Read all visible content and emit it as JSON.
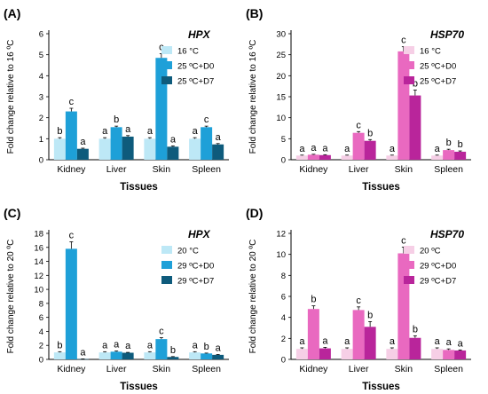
{
  "chart_data": [
    {
      "type": "bar",
      "panel": "(A)",
      "title": "HPX",
      "xlabel": "Tissues",
      "ylabel": "Fold change relative to 16 ºC",
      "ylim": [
        0,
        6
      ],
      "yticks": [
        "0",
        "1",
        "2",
        "3",
        "4",
        "5",
        "6"
      ],
      "categories": [
        "Kidney",
        "Liver",
        "Skin",
        "Spleen"
      ],
      "legend_position": "top-right",
      "series": [
        {
          "name": "16 °C",
          "color": "#bde8f6",
          "values": [
            1.0,
            1.0,
            1.0,
            1.0
          ],
          "errors": [
            0.05,
            0.05,
            0.05,
            0.05
          ],
          "labels": [
            "b",
            "a",
            "a",
            "a"
          ]
        },
        {
          "name": "25 ºC+D0",
          "color": "#1ea0d8",
          "values": [
            2.3,
            1.55,
            4.85,
            1.55
          ],
          "errors": [
            0.15,
            0.05,
            0.2,
            0.05
          ],
          "labels": [
            "c",
            "b",
            "c",
            "c"
          ]
        },
        {
          "name": "25 ºC+D7",
          "color": "#0e5b7c",
          "values": [
            0.52,
            1.1,
            0.62,
            0.73
          ],
          "errors": [
            0.03,
            0.05,
            0.04,
            0.04
          ],
          "labels": [
            "a",
            "a",
            "a",
            "a"
          ]
        }
      ]
    },
    {
      "type": "bar",
      "panel": "(B)",
      "title": "HSP70",
      "xlabel": "Tissues",
      "ylabel": "Fold change relative to 16 ºC",
      "ylim": [
        0,
        30
      ],
      "yticks": [
        "0",
        "5",
        "10",
        "15",
        "20",
        "25",
        "30"
      ],
      "categories": [
        "Kidney",
        "Liver",
        "Skin",
        "Spleen"
      ],
      "legend_position": "top-right",
      "series": [
        {
          "name": "16 °C",
          "color": "#f6cfe6",
          "values": [
            1.0,
            1.0,
            1.0,
            1.0
          ],
          "errors": [
            0.1,
            0.1,
            0.1,
            0.1
          ],
          "labels": [
            "a",
            "a",
            "a",
            "a"
          ]
        },
        {
          "name": "25 ºC+D0",
          "color": "#e969c0",
          "values": [
            1.2,
            6.4,
            25.8,
            2.3
          ],
          "errors": [
            0.1,
            0.3,
            1.1,
            0.2
          ],
          "labels": [
            "a",
            "c",
            "c",
            "b"
          ]
        },
        {
          "name": "25 ºC+D7",
          "color": "#b9259b",
          "values": [
            1.1,
            4.5,
            15.3,
            1.9
          ],
          "errors": [
            0.1,
            0.3,
            1.3,
            0.2
          ],
          "labels": [
            "a",
            "b",
            "b",
            "b"
          ]
        }
      ]
    },
    {
      "type": "bar",
      "panel": "(C)",
      "title": "HPX",
      "xlabel": "Tissues",
      "ylabel": "Fold change relative to 20 ºC",
      "ylim": [
        0,
        18
      ],
      "yticks": [
        "0",
        "2",
        "4",
        "6",
        "8",
        "10",
        "12",
        "14",
        "16",
        "18"
      ],
      "categories": [
        "Kidney",
        "Liver",
        "Skin",
        "Spleen"
      ],
      "legend_position": "top-right",
      "series": [
        {
          "name": "20 °C",
          "color": "#bde8f6",
          "values": [
            1.0,
            1.0,
            1.0,
            1.0
          ],
          "errors": [
            0.1,
            0.1,
            0.1,
            0.1
          ],
          "labels": [
            "b",
            "a",
            "a",
            "a"
          ]
        },
        {
          "name": "29 ºC+D0",
          "color": "#1ea0d8",
          "values": [
            15.8,
            1.1,
            2.9,
            0.85
          ],
          "errors": [
            1.0,
            0.1,
            0.2,
            0.05
          ],
          "labels": [
            "c",
            "a",
            "c",
            "b"
          ]
        },
        {
          "name": "29 ºC+D7",
          "color": "#0e5b7c",
          "values": [
            0.05,
            0.95,
            0.35,
            0.65
          ],
          "errors": [
            0.02,
            0.05,
            0.05,
            0.05
          ],
          "labels": [
            "a",
            "a",
            "b",
            "a"
          ]
        }
      ]
    },
    {
      "type": "bar",
      "panel": "(D)",
      "title": "HSP70",
      "xlabel": "Tissues",
      "ylabel": "Fold change relative to 20 ºC",
      "ylim": [
        0,
        12
      ],
      "yticks": [
        "0",
        "2",
        "4",
        "6",
        "8",
        "10",
        "12"
      ],
      "categories": [
        "Kidney",
        "Liver",
        "Skin",
        "Spleen"
      ],
      "legend_position": "top-right",
      "series": [
        {
          "name": "20 ºC",
          "color": "#f6cfe6",
          "values": [
            1.0,
            1.0,
            1.0,
            1.0
          ],
          "errors": [
            0.1,
            0.1,
            0.1,
            0.1
          ],
          "labels": [
            "a",
            "a",
            "a",
            "a"
          ]
        },
        {
          "name": "29 ºC+D0",
          "color": "#e969c0",
          "values": [
            4.8,
            4.7,
            10.1,
            0.9
          ],
          "errors": [
            0.3,
            0.3,
            0.6,
            0.1
          ],
          "labels": [
            "b",
            "c",
            "c",
            "a"
          ]
        },
        {
          "name": "29 ºC+D7",
          "color": "#b9259b",
          "values": [
            1.05,
            3.1,
            2.05,
            0.85
          ],
          "errors": [
            0.1,
            0.5,
            0.2,
            0.05
          ],
          "labels": [
            "a",
            "b",
            "b",
            "a"
          ]
        }
      ]
    }
  ]
}
